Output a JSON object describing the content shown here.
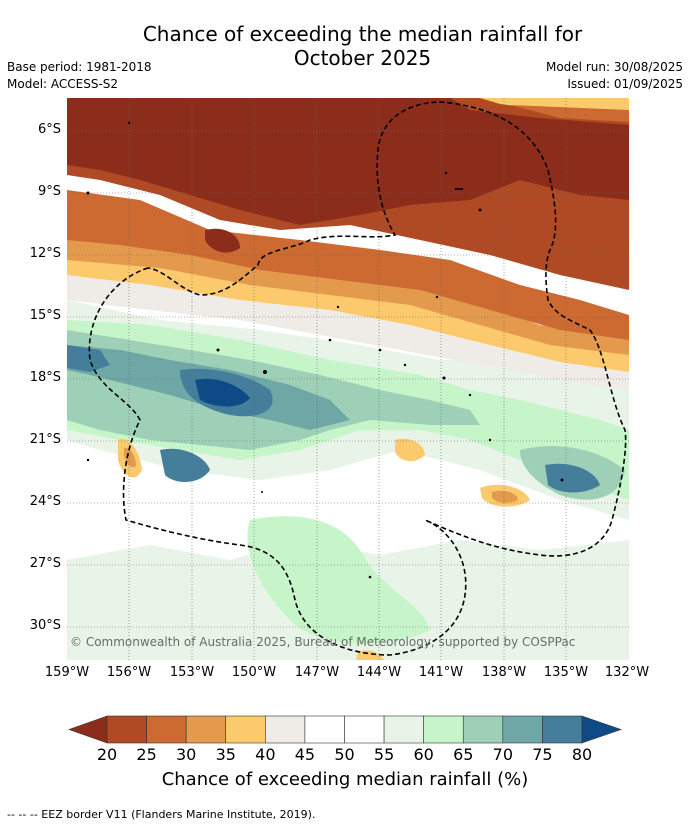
{
  "title": {
    "line1": "Chance of exceeding the median rainfall for",
    "line2": "October 2025"
  },
  "meta": {
    "base_period": "Base period: 1981-2018",
    "model": "Model: ACCESS-S2",
    "model_run": "Model run: 30/08/2025",
    "issued": "Issued: 01/09/2025"
  },
  "map": {
    "lat_labels": [
      "6°S",
      "9°S",
      "12°S",
      "15°S",
      "18°S",
      "21°S",
      "24°S",
      "27°S",
      "30°S"
    ],
    "lon_labels": [
      "159°W",
      "156°W",
      "153°W",
      "150°W",
      "147°W",
      "144°W",
      "141°W",
      "138°W",
      "135°W",
      "132°W"
    ],
    "copyright": "© Commonwealth of Australia 2025, Bureau of Meteorology, supported by COSPPac",
    "eez_line_color": "#000000"
  },
  "colorbar": {
    "ticks": [
      "20",
      "25",
      "30",
      "35",
      "40",
      "45",
      "50",
      "55",
      "60",
      "65",
      "70",
      "75",
      "80"
    ],
    "colors": [
      "#8c2d1c",
      "#b04a24",
      "#cd6a32",
      "#e39a4d",
      "#fcc96c",
      "#efece7",
      "#ffffff",
      "#ffffff",
      "#e8f4e8",
      "#c5f5c8",
      "#9ed0b8",
      "#6fa7a7",
      "#457e9b",
      "#0e4a86"
    ],
    "title": "Chance of exceeding median rainfall (%)"
  },
  "footer": "-- -- -- EEZ border V11 (Flanders Marine Institute, 2019)."
}
